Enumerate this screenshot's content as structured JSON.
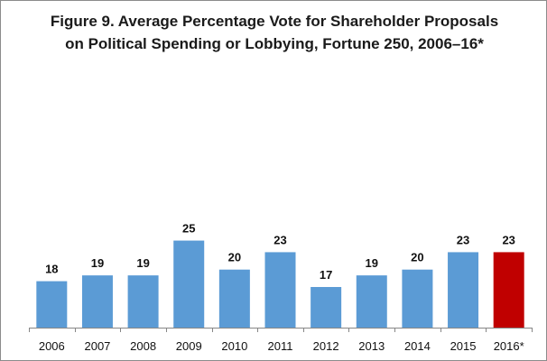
{
  "chart_data": {
    "type": "bar",
    "title_lines": [
      "Figure 9. Average Percentage Vote for Shareholder Proposals",
      "on Political Spending or Lobbying, Fortune 250, 2006–16*"
    ],
    "xlabel": "",
    "ylabel": "",
    "categories": [
      "2006",
      "2007",
      "2008",
      "2009",
      "2010",
      "2011",
      "2012",
      "2013",
      "2014",
      "2015",
      "2016*"
    ],
    "values": [
      18,
      19,
      19,
      25,
      20,
      23,
      17,
      19,
      20,
      23,
      23
    ],
    "ylim": [
      10,
      45
    ],
    "grid": false,
    "legend": "none",
    "colors": {
      "default": "#5B9BD5",
      "highlight": "#C00000",
      "highlight_categories": [
        "2016*"
      ]
    }
  }
}
